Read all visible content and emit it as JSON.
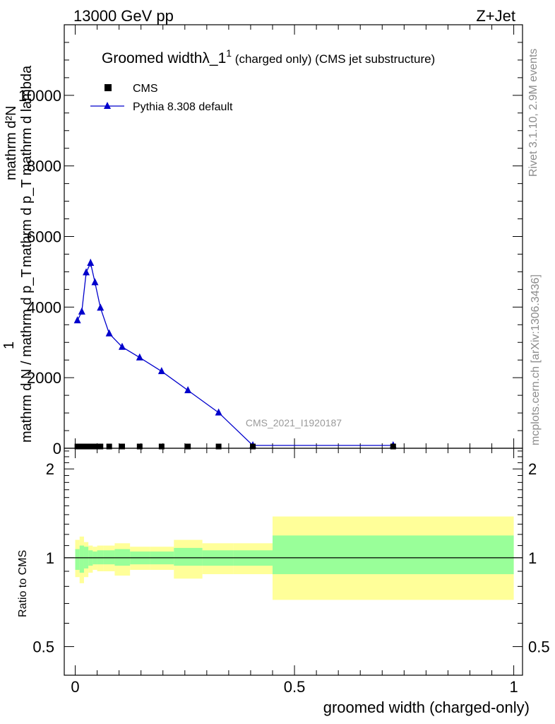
{
  "header": {
    "energy_label": "13000 GeV pp",
    "process_label": "Z+Jet"
  },
  "side_labels": {
    "rivet": "Rivet 3.1.10,  2.9M events",
    "mcplots": "mcplots.cern.ch [arXiv:1306.3436]"
  },
  "watermark": "CMS_2021_I1920187",
  "colors": {
    "mc": "#0000cc",
    "band_stat": "#99ff99",
    "band_total": "#ffff99",
    "data": "#000000"
  },
  "chart_data": [
    {
      "type": "line",
      "title_main": "Groomed width",
      "title_lambda": "λ_1",
      "title_sup": "1",
      "title_rest": " (charged only) (CMS jet substructure)",
      "ylabel_lines": [
        "mathrm d²N",
        "mathrm d p_T mathrm d lambda",
        "1",
        "mathrm d N / mathrm d p_T"
      ],
      "ylim": [
        0,
        12000
      ],
      "yticks": [
        0,
        2000,
        4000,
        6000,
        8000,
        10000
      ],
      "ytick_labels": [
        "0",
        "2000",
        "4000",
        "6000",
        "8000",
        "10000"
      ],
      "xlim": [
        -0.025,
        1.02
      ],
      "legend": [
        {
          "name": "CMS",
          "marker": "square"
        },
        {
          "name": "Pythia 8.308 default",
          "marker": "triangle"
        }
      ],
      "series": [
        {
          "name": "CMS",
          "x": [
            0.005,
            0.015,
            0.025,
            0.035,
            0.045,
            0.0575,
            0.0775,
            0.107,
            0.147,
            0.197,
            0.257,
            0.327,
            0.405,
            0.725
          ],
          "values": [
            50,
            50,
            50,
            50,
            50,
            50,
            50,
            50,
            50,
            50,
            50,
            50,
            50,
            50
          ]
        },
        {
          "name": "Pythia 8.308 default",
          "x": [
            0.005,
            0.015,
            0.025,
            0.035,
            0.045,
            0.0575,
            0.0775,
            0.107,
            0.147,
            0.197,
            0.257,
            0.327,
            0.405,
            0.725
          ],
          "values": [
            3620,
            3870,
            4980,
            5250,
            4700,
            3980,
            3250,
            2870,
            2570,
            2180,
            1640,
            1010,
            80,
            80
          ],
          "errors": [
            70,
            80,
            100,
            110,
            90,
            70,
            60,
            50,
            40,
            40,
            30,
            25,
            10,
            10
          ]
        }
      ]
    },
    {
      "type": "area",
      "ylabel": "Ratio to CMS",
      "xlabel": "groomed width (charged-only)",
      "xlim": [
        -0.025,
        1.02
      ],
      "ylim": [
        0.4,
        2.35
      ],
      "log_scale": true,
      "xticks": [
        0,
        0.5,
        1
      ],
      "xtick_labels": [
        "0",
        "0.5",
        "1"
      ],
      "yticks": [
        0.5,
        1,
        2
      ],
      "ytick_labels": [
        "0.5",
        "1",
        "2"
      ],
      "bins": [
        {
          "lo": 0.0,
          "hi": 0.01,
          "stat": [
            0.91,
            1.07
          ],
          "tot": [
            0.86,
            1.15
          ]
        },
        {
          "lo": 0.01,
          "hi": 0.02,
          "stat": [
            0.89,
            1.1
          ],
          "tot": [
            0.82,
            1.18
          ]
        },
        {
          "lo": 0.02,
          "hi": 0.03,
          "stat": [
            0.92,
            1.09
          ],
          "tot": [
            0.86,
            1.13
          ]
        },
        {
          "lo": 0.03,
          "hi": 0.04,
          "stat": [
            0.94,
            1.06
          ],
          "tot": [
            0.89,
            1.1
          ]
        },
        {
          "lo": 0.04,
          "hi": 0.05,
          "stat": [
            0.95,
            1.05
          ],
          "tot": [
            0.91,
            1.09
          ]
        },
        {
          "lo": 0.05,
          "hi": 0.065,
          "stat": [
            0.95,
            1.06
          ],
          "tot": [
            0.9,
            1.1
          ]
        },
        {
          "lo": 0.065,
          "hi": 0.09,
          "stat": [
            0.95,
            1.06
          ],
          "tot": [
            0.9,
            1.1
          ]
        },
        {
          "lo": 0.09,
          "hi": 0.125,
          "stat": [
            0.94,
            1.07
          ],
          "tot": [
            0.87,
            1.12
          ]
        },
        {
          "lo": 0.125,
          "hi": 0.17,
          "stat": [
            0.95,
            1.05
          ],
          "tot": [
            0.91,
            1.09
          ]
        },
        {
          "lo": 0.17,
          "hi": 0.225,
          "stat": [
            0.95,
            1.05
          ],
          "tot": [
            0.91,
            1.09
          ]
        },
        {
          "lo": 0.225,
          "hi": 0.29,
          "stat": [
            0.94,
            1.08
          ],
          "tot": [
            0.85,
            1.15
          ]
        },
        {
          "lo": 0.29,
          "hi": 0.36,
          "stat": [
            0.94,
            1.06
          ],
          "tot": [
            0.88,
            1.12
          ]
        },
        {
          "lo": 0.36,
          "hi": 0.45,
          "stat": [
            0.94,
            1.06
          ],
          "tot": [
            0.88,
            1.12
          ]
        },
        {
          "lo": 0.45,
          "hi": 1.0,
          "stat": [
            0.88,
            1.19
          ],
          "tot": [
            0.72,
            1.38
          ]
        }
      ],
      "reference": 1
    }
  ]
}
